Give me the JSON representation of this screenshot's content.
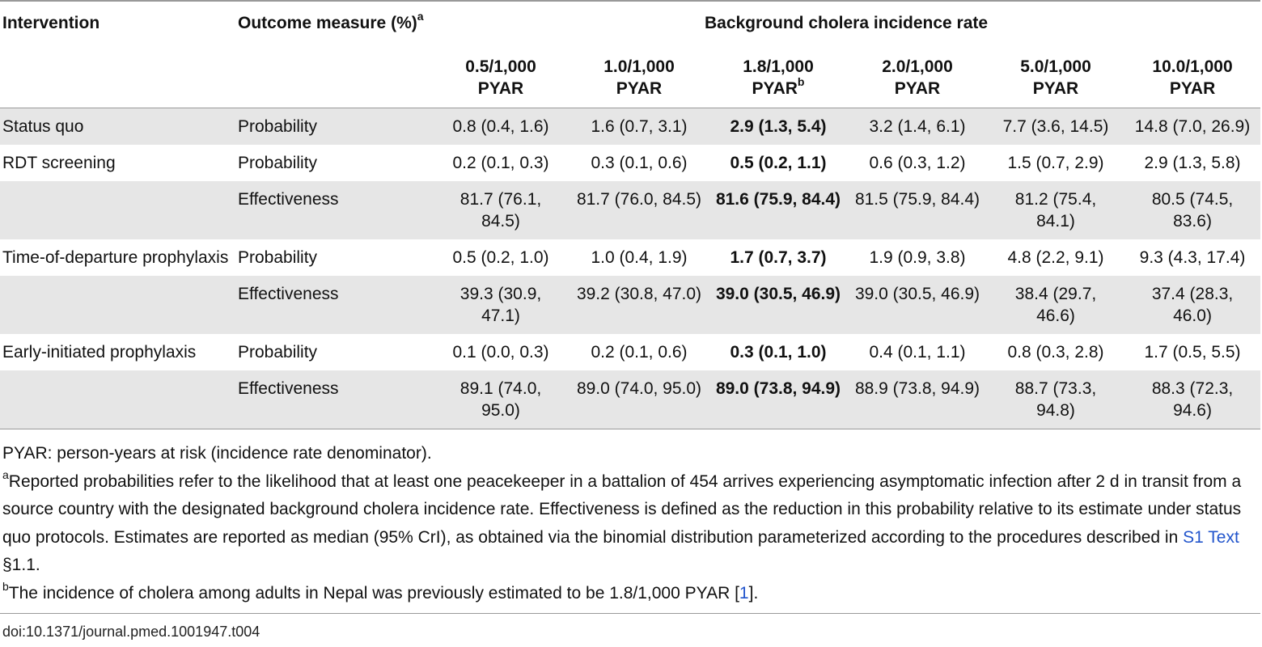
{
  "table": {
    "headers": {
      "intervention": "Intervention",
      "outcome": "Outcome measure (%)",
      "outcome_sup": "a",
      "group": "Background cholera incidence rate",
      "rates": [
        {
          "line1": "0.5/1,000",
          "line2": "PYAR",
          "sup": ""
        },
        {
          "line1": "1.0/1,000",
          "line2": "PYAR",
          "sup": ""
        },
        {
          "line1": "1.8/1,000",
          "line2": "PYAR",
          "sup": "b"
        },
        {
          "line1": "2.0/1,000",
          "line2": "PYAR",
          "sup": ""
        },
        {
          "line1": "5.0/1,000",
          "line2": "PYAR",
          "sup": ""
        },
        {
          "line1": "10.0/1,000",
          "line2": "PYAR",
          "sup": ""
        }
      ]
    },
    "rows": [
      {
        "intervention": "Status quo",
        "measure": "Probability",
        "values": [
          "0.8 (0.4, 1.6)",
          "1.6 (0.7, 3.1)",
          "2.9 (1.3, 5.4)",
          "3.2 (1.4, 6.1)",
          "7.7 (3.6, 14.5)",
          "14.8 (7.0, 26.9)"
        ]
      },
      {
        "intervention": "RDT screening",
        "measure": "Probability",
        "values": [
          "0.2 (0.1, 0.3)",
          "0.3 (0.1, 0.6)",
          "0.5 (0.2, 1.1)",
          "0.6 (0.3, 1.2)",
          "1.5 (0.7, 2.9)",
          "2.9 (1.3, 5.8)"
        ]
      },
      {
        "intervention": "",
        "measure": "Effectiveness",
        "values": [
          "81.7 (76.1, 84.5)",
          "81.7 (76.0, 84.5)",
          "81.6 (75.9, 84.4)",
          "81.5 (75.9, 84.4)",
          "81.2 (75.4, 84.1)",
          "80.5 (74.5, 83.6)"
        ]
      },
      {
        "intervention": "Time-of-departure prophylaxis",
        "measure": "Probability",
        "values": [
          "0.5 (0.2, 1.0)",
          "1.0 (0.4, 1.9)",
          "1.7 (0.7, 3.7)",
          "1.9 (0.9, 3.8)",
          "4.8 (2.2, 9.1)",
          "9.3 (4.3, 17.4)"
        ]
      },
      {
        "intervention": "",
        "measure": "Effectiveness",
        "values": [
          "39.3 (30.9, 47.1)",
          "39.2 (30.8, 47.0)",
          "39.0 (30.5, 46.9)",
          "39.0 (30.5, 46.9)",
          "38.4 (29.7, 46.6)",
          "37.4 (28.3, 46.0)"
        ]
      },
      {
        "intervention": "Early-initiated prophylaxis",
        "measure": "Probability",
        "values": [
          "0.1 (0.0, 0.3)",
          "0.2 (0.1, 0.6)",
          "0.3 (0.1, 1.0)",
          "0.4 (0.1, 1.1)",
          "0.8 (0.3, 2.8)",
          "1.7 (0.5, 5.5)"
        ]
      },
      {
        "intervention": "",
        "measure": "Effectiveness",
        "values": [
          "89.1 (74.0, 95.0)",
          "89.0 (74.0, 95.0)",
          "89.0 (73.8, 94.9)",
          "88.9 (73.8, 94.9)",
          "88.7 (73.3, 94.8)",
          "88.3 (72.3, 94.6)"
        ]
      }
    ]
  },
  "notes": {
    "pyar": "PYAR: person-years at risk (incidence rate denominator).",
    "a_marker": "a",
    "a_text": "Reported probabilities refer to the likelihood that at least one peacekeeper in a battalion of 454 arrives experiencing asymptomatic infection after 2 d in transit from a source country with the designated background cholera incidence rate. Effectiveness is defined as the reduction in this probability relative to its estimate under status quo protocols. Estimates are reported as median (95% CrI), as obtained via the binomial distribution parameterized according to the procedures described in ",
    "a_link": "S1 Text",
    "a_tail": " §1.1.",
    "b_marker": "b",
    "b_text": "The incidence of cholera among adults in Nepal was previously estimated to be 1.8/1,000 PYAR [",
    "b_link": "1",
    "b_tail": "]."
  },
  "doi": "doi:10.1371/journal.pmed.1001947.t004",
  "colors": {
    "shade": "#e6e6e6",
    "rule": "#999999",
    "link": "#2255cc"
  }
}
